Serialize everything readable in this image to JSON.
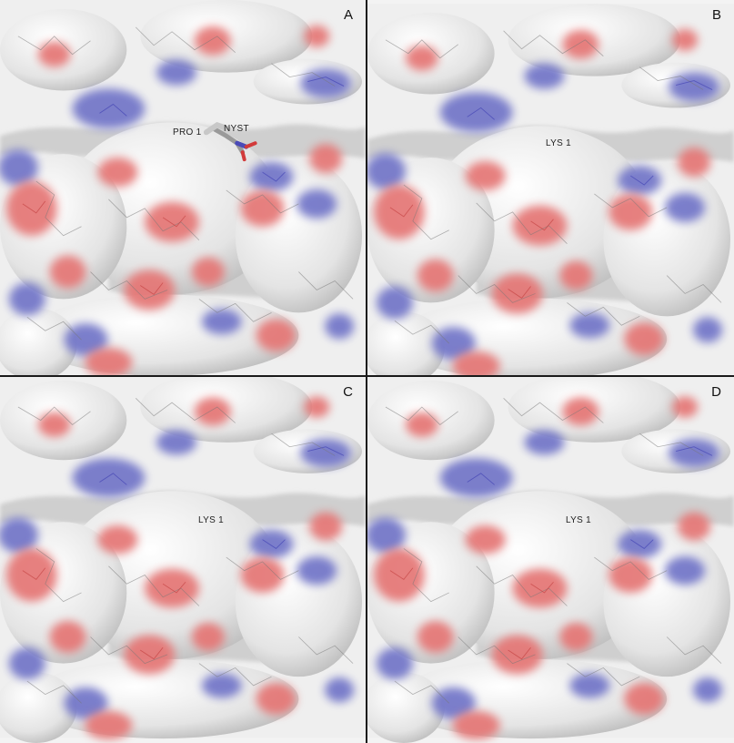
{
  "colors": {
    "positive": "#7478c9",
    "negative": "#e57674",
    "neutral": "#e6e6e6",
    "background": "#f3f3f3",
    "border": "#1a1a1a"
  },
  "panels": [
    {
      "letter": "A",
      "labels": [
        "PRO 1",
        "NYST"
      ],
      "ligand": "stick-model"
    },
    {
      "letter": "B",
      "labels": [
        "LYS 1"
      ]
    },
    {
      "letter": "C",
      "labels": [
        "LYS 1"
      ]
    },
    {
      "letter": "D",
      "labels": [
        "LYS 1"
      ]
    }
  ]
}
